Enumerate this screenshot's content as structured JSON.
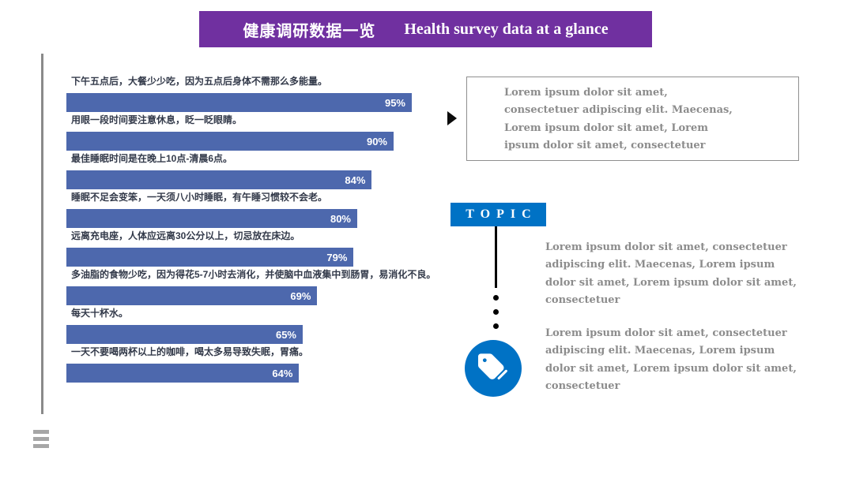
{
  "header": {
    "title_zh": "健康调研数据一览",
    "title_en": "Health survey data at a glance",
    "bg_color": "#7030A0"
  },
  "chart_data": {
    "type": "bar",
    "orientation": "horizontal",
    "xlim": [
      0,
      100
    ],
    "value_suffix": "%",
    "bar_color": "#4D68AD",
    "grid": false,
    "items": [
      {
        "label": "下午五点后，大餐少少吃，因为五点后身体不需那么多能量。",
        "value": 95,
        "display": "95%"
      },
      {
        "label": "用眼一段时间要注意休息，眨一眨眼睛。",
        "value": 90,
        "display": "90%"
      },
      {
        "label": "最佳睡眠时间是在晚上10点-清晨6点。",
        "value": 84,
        "display": "84%"
      },
      {
        "label": "睡眠不足会变笨，一天须八小时睡眠，有午睡习惯较不会老。",
        "value": 80,
        "display": "80%"
      },
      {
        "label": "远离充电座，人体应远离30公分以上，切忌放在床边。",
        "value": 79,
        "display": "79%"
      },
      {
        "label": "多油脂的食物少吃，因为得花5-7小时去消化，并使脑中血液集中到肠胃，易消化不良。",
        "value": 69,
        "display": "69%"
      },
      {
        "label": "每天十杯水。",
        "value": 65,
        "display": "65%"
      },
      {
        "label": "一天不要喝两杯以上的咖啡，喝太多易导致失眠，胃痛。",
        "value": 64,
        "display": "64%"
      }
    ]
  },
  "callout": {
    "text": "Lorem ipsum dolor sit amet, consectetuer adipiscing elit. Maecenas,   Lorem ipsum dolor sit amet, Lorem ipsum dolor sit amet, consectetuer"
  },
  "topic": {
    "label": "TOPIC",
    "accent_color": "#0072C5",
    "paragraphs": [
      "Lorem ipsum dolor sit amet, consectetuer adipiscing elit. Maecenas,   Lorem ipsum dolor sit amet, Lorem ipsum dolor sit amet, consectetuer",
      "Lorem ipsum dolor sit amet, consectetuer adipiscing elit. Maecenas,   Lorem ipsum dolor sit amet, Lorem ipsum dolor sit amet, consectetuer"
    ]
  },
  "icons": {
    "tag": "tag-icon",
    "arrow": "right-triangle-icon",
    "hamburger": "menu-lines-icon"
  }
}
